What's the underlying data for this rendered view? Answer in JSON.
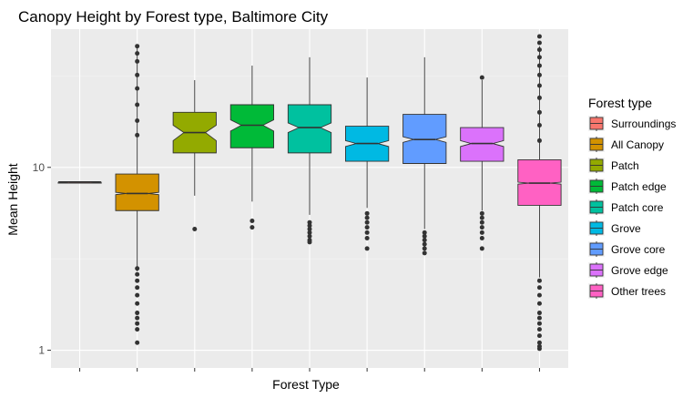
{
  "chart_data": {
    "type": "boxplot",
    "notched": true,
    "title": "Canopy Height by Forest type, Baltimore City",
    "xlabel": "Forest Type",
    "ylabel": "Mean Height",
    "yscale": "log10",
    "ylim": [
      0.8,
      57
    ],
    "yticks": [
      {
        "value": 1,
        "label": "1"
      },
      {
        "value": 10,
        "label": "10"
      }
    ],
    "grid": true,
    "legend_title": "Forest type",
    "legend_position": "right",
    "series": [
      {
        "name": "Surroundings",
        "color": "#F8766D",
        "q1": 8.2,
        "median": 8.3,
        "q3": 8.35,
        "whisker_low": 8.2,
        "whisker_high": 8.35,
        "notch_low": 8.25,
        "notch_high": 8.35,
        "outliers": []
      },
      {
        "name": "All Canopy",
        "color": "#D39200",
        "q1": 5.8,
        "median": 7.2,
        "q3": 9.2,
        "whisker_low": 2.7,
        "whisker_high": 46,
        "notch_low": 7.1,
        "notch_high": 7.3,
        "outliers": [
          2.8,
          2.6,
          2.4,
          2.2,
          2.0,
          1.8,
          1.6,
          1.5,
          1.4,
          1.3,
          1.1,
          15,
          18,
          22,
          27,
          32,
          38,
          42,
          46
        ]
      },
      {
        "name": "Patch",
        "color": "#93AA00",
        "q1": 12,
        "median": 15.5,
        "q3": 20,
        "whisker_low": 7,
        "whisker_high": 30,
        "notch_low": 14.0,
        "notch_high": 17.0,
        "outliers": [
          4.6
        ]
      },
      {
        "name": "Patch edge",
        "color": "#00BA38",
        "q1": 12.8,
        "median": 17,
        "q3": 22,
        "whisker_low": 6.5,
        "whisker_high": 36,
        "notch_low": 15.8,
        "notch_high": 18.2,
        "outliers": [
          5.1,
          4.7
        ]
      },
      {
        "name": "Patch core",
        "color": "#00C19F",
        "q1": 12,
        "median": 16.5,
        "q3": 22,
        "whisker_low": 5.5,
        "whisker_high": 40,
        "notch_low": 15.5,
        "notch_high": 17.5,
        "outliers": [
          5.0,
          4.8,
          4.6,
          4.4,
          4.2,
          4.0,
          3.9
        ]
      },
      {
        "name": "Grove",
        "color": "#00B9E3",
        "q1": 10.8,
        "median": 13.5,
        "q3": 16.8,
        "whisker_low": 6.0,
        "whisker_high": 31,
        "notch_low": 13.0,
        "notch_high": 14.0,
        "outliers": [
          5.6,
          5.3,
          5.0,
          4.7,
          4.4,
          4.1,
          3.6
        ]
      },
      {
        "name": "Grove core",
        "color": "#619CFF",
        "q1": 10.5,
        "median": 14.2,
        "q3": 19.5,
        "whisker_low": 4.6,
        "whisker_high": 40,
        "notch_low": 13.7,
        "notch_high": 14.7,
        "outliers": [
          4.4,
          4.2,
          4.0,
          3.8,
          3.6,
          3.4
        ]
      },
      {
        "name": "Grove edge",
        "color": "#DB72FB",
        "q1": 10.8,
        "median": 13.5,
        "q3": 16.5,
        "whisker_low": 5.8,
        "whisker_high": 30,
        "notch_low": 13.0,
        "notch_high": 14.0,
        "outliers": [
          5.6,
          5.3,
          5.0,
          4.7,
          4.4,
          4.1,
          3.6,
          31
        ]
      },
      {
        "name": "Other trees",
        "color": "#FF61C3",
        "q1": 6.2,
        "median": 8.2,
        "q3": 11,
        "whisker_low": 2.5,
        "whisker_high": 46,
        "notch_low": 8.1,
        "notch_high": 8.3,
        "outliers": [
          2.4,
          2.2,
          2.0,
          1.8,
          1.6,
          1.5,
          1.4,
          1.3,
          1.2,
          1.1,
          1.05,
          1.02,
          14,
          17,
          20,
          24,
          28,
          32,
          36,
          40,
          44,
          48,
          52
        ]
      }
    ]
  }
}
